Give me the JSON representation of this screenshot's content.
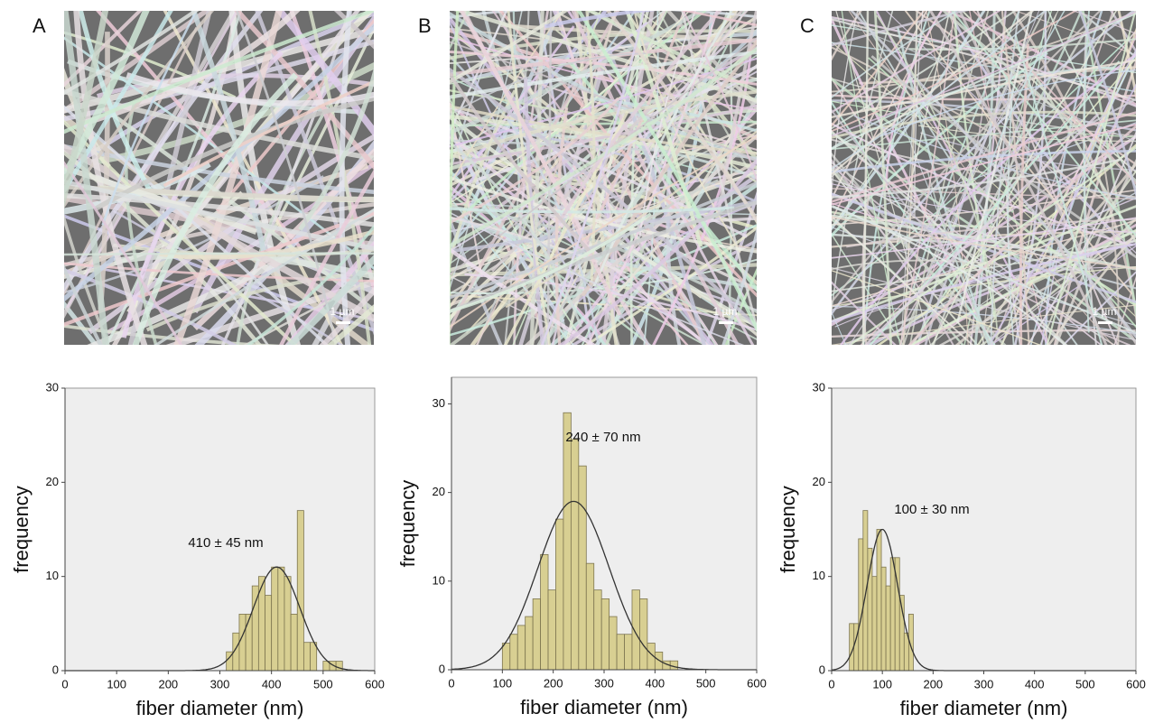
{
  "images": [
    {
      "label": "A",
      "scale_bar": "1 µm"
    },
    {
      "label": "B",
      "scale_bar": "1 µm"
    },
    {
      "label": "C",
      "scale_bar": "1 µm"
    }
  ],
  "chart_data": [
    {
      "type": "histogram",
      "xlabel": "fiber diameter (nm)",
      "ylabel": "frequency",
      "annotation": "410 ± 45 nm",
      "color": "#d8cf92",
      "bins": [
        312.5,
        325,
        337.5,
        350,
        362.5,
        375,
        387.5,
        400,
        412.5,
        425,
        437.5,
        450,
        462.5,
        475,
        487.5,
        500,
        512.5,
        525,
        537.5
      ],
      "values": [
        2,
        4,
        6,
        6,
        9,
        10,
        8,
        11,
        11,
        10,
        6,
        17,
        3,
        3,
        0,
        1,
        1,
        1
      ],
      "fit": {
        "mean": 410,
        "sd": 45,
        "peak": 11
      },
      "xlim": [
        0,
        600
      ],
      "xticks": [
        0,
        100,
        200,
        300,
        400,
        500,
        600
      ],
      "ylim": [
        0,
        30
      ],
      "yticks": [
        0,
        10,
        20,
        30
      ]
    },
    {
      "type": "histogram",
      "xlabel": "fiber diameter (nm)",
      "ylabel": "frequency",
      "annotation": "240 ± 70 nm",
      "color": "#d8cf92",
      "bins": [
        100,
        115,
        130,
        145,
        160,
        175,
        190,
        205,
        220,
        235,
        250,
        265,
        280,
        295,
        310,
        325,
        340,
        355,
        370,
        385,
        400,
        415,
        430,
        445
      ],
      "values": [
        3,
        4,
        5,
        6,
        8,
        13,
        9,
        17,
        29,
        26,
        23,
        12,
        9,
        8,
        6,
        4,
        4,
        9,
        8,
        3,
        2,
        1,
        1
      ],
      "fit": {
        "mean": 240,
        "sd": 70,
        "peak": 19
      },
      "xlim": [
        0,
        600
      ],
      "xticks": [
        0,
        100,
        200,
        300,
        400,
        500,
        600
      ],
      "ylim": [
        0,
        33
      ],
      "yticks": [
        0,
        10,
        20,
        30
      ]
    },
    {
      "type": "histogram",
      "xlabel": "fiber diameter (nm)",
      "ylabel": "frequency",
      "annotation": "100 ± 30 nm",
      "color": "#d8cf92",
      "bins": [
        35,
        44,
        53,
        62,
        71,
        80,
        89,
        98,
        107,
        116,
        125,
        134,
        143,
        152,
        161,
        170
      ],
      "values": [
        5,
        5,
        14,
        17,
        13,
        10,
        15,
        11,
        9,
        12,
        12,
        8,
        4,
        6,
        0
      ],
      "fit": {
        "mean": 100,
        "sd": 30,
        "peak": 15
      },
      "xlim": [
        0,
        600
      ],
      "xticks": [
        0,
        100,
        200,
        300,
        400,
        500,
        600
      ],
      "ylim": [
        0,
        30
      ],
      "yticks": [
        0,
        10,
        20,
        30
      ]
    }
  ]
}
